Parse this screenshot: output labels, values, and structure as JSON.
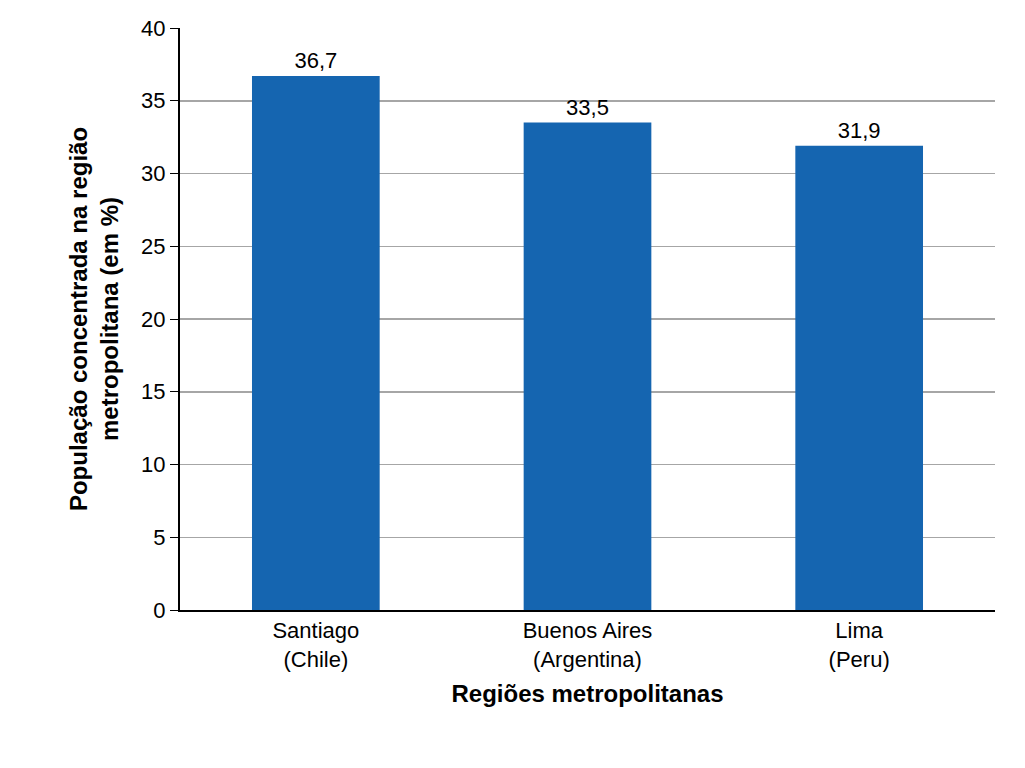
{
  "chart_data": {
    "type": "bar",
    "x_label": "Regiões metropolitanas",
    "y_label": "População concentrada na região\nmetropolitana (em %)",
    "categories": [
      "Santiago\n(Chile)",
      "Buenos Aires\n(Argentina)",
      "Lima\n(Peru)"
    ],
    "values": [
      36.7,
      33.5,
      31.9
    ],
    "value_labels": [
      "36,7",
      "33,5",
      "31,9"
    ],
    "data_labels": true,
    "color": "#1565b0",
    "ylim": [
      0,
      40
    ],
    "yticks": [
      0,
      5,
      10,
      15,
      20,
      25,
      30,
      35,
      40
    ],
    "grid": true
  }
}
